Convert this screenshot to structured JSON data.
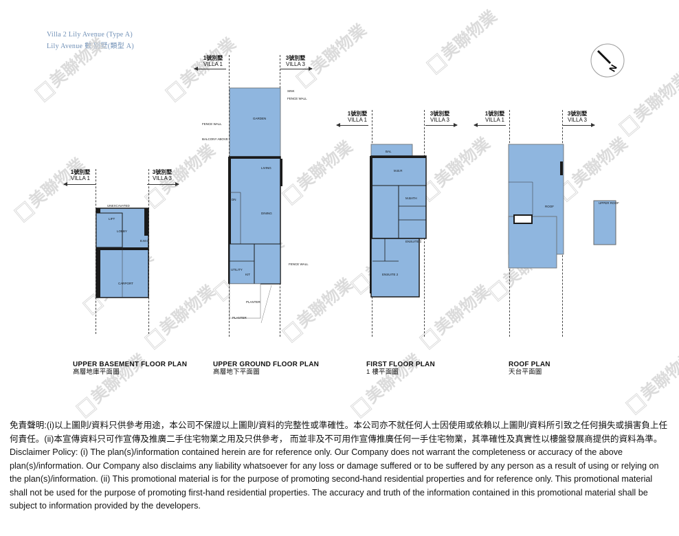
{
  "header": {
    "line1": "Villa 2 Lily Avenue (Type A)",
    "line2": "Lily Avenue 數 別墅(類型 A)"
  },
  "villa_labels": {
    "left_zh": "1號別墅",
    "left_en": "VILLA 1",
    "right_zh": "3號別墅",
    "right_en": "VILLA 3"
  },
  "plans": [
    {
      "en": "UPPER BASEMENT FLOOR PLAN",
      "zh": "高層地庫平面圖"
    },
    {
      "en": "UPPER GROUND FLOOR PLAN",
      "zh": "高層地下平面圖"
    },
    {
      "en": "FIRST FLOOR PLAN",
      "zh": "1 樓平面圖"
    },
    {
      "en": "ROOF PLAN",
      "zh": "天台平面圖"
    }
  ],
  "room_labels": {
    "unexcavated": "UNEXCAVATED",
    "lift": "LIFT",
    "lobby": "LOBBY",
    "emc": "E.M.C",
    "carport": "CARPORT",
    "garden": "GARDEN",
    "fence_wall": "FENCE WALL",
    "balcony_above": "BALCONY ABOVE",
    "sink": "SINK",
    "living": "LIVING",
    "dining": "DINING",
    "dn": "DN",
    "utility": "UTILITY",
    "kit": "KIT",
    "planter": "PLANTER",
    "bal": "BAL",
    "mbr": "M.B.R",
    "mbath": "M.BATH",
    "ensuite1": "ENSUITE 1",
    "ensuite2": "ENSUITE 2",
    "roof": "ROOF",
    "upper_roof": "UPPER ROOF"
  },
  "watermark": {
    "text": "美聯物業"
  },
  "north_label": "N",
  "disclaimer": {
    "zh": "免責聲明:(i)以上圖則/資料只供參考用途，本公司不保證以上圖則/資料的完整性或準確性。本公司亦不就任何人士因使用或依賴以上圖則/資料所引致之任何損失或損害負上任何責任。(ii)本宣傳資料只可作宣傳及推廣二手住宅物業之用及只供參考， 而並非及不可用作宣傳推廣任何一手住宅物業，其準確性及真實性以樓盤發展商提供的資料為準。",
    "en": "Disclaimer Policy: (i) The plan(s)/information contained herein are for reference only. Our Company does not warrant the completeness or accuracy of the above plan(s)/information. Our Company also disclaims any liability whatsoever for any loss or damage suffered or to be suffered by any person as a result of using or relying on the plan(s)/information. (ii) This promotional material is for the purpose of promoting second-hand residential properties and for reference only. This promotional material shall not be used for the purpose of promoting first-hand residential properties. The accuracy and truth of the information contained in this promotional material shall be subject to information provided by the developers."
  },
  "colors": {
    "floor_fill": "#8fb6df",
    "wall": "#1a1a1a",
    "header_text": "#6f8fb6",
    "watermark": "#d0d0d0"
  }
}
